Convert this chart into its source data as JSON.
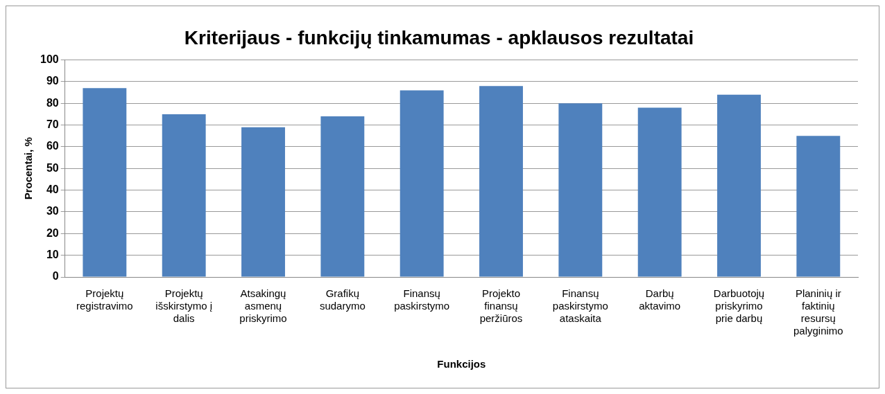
{
  "chart_data": {
    "type": "bar",
    "title": "Kriterijaus - funkcijų tinkamumas - apklausos rezultatai",
    "xlabel": "Funkcijos",
    "ylabel": "Procentai, %",
    "categories": [
      "Projektų registravimo",
      "Projektų išskirstymo į dalis",
      "Atsakingų asmenų priskyrimo",
      "Grafikų sudarymo",
      "Finansų paskirstymo",
      "Projekto finansų peržiūros",
      "Finansų paskirstymo ataskaita",
      "Darbų aktavimo",
      "Darbuotojų priskyrimo prie darbų",
      "Planinių ir faktinių resursų palyginimo"
    ],
    "values": [
      87,
      75,
      69,
      74,
      86,
      88,
      80,
      78,
      84,
      65
    ],
    "color": "#4f81bd",
    "ylim": [
      0,
      100
    ],
    "yticks": [
      0,
      10,
      20,
      30,
      40,
      50,
      60,
      70,
      80,
      90,
      100
    ],
    "grid": "y",
    "legend": false
  }
}
